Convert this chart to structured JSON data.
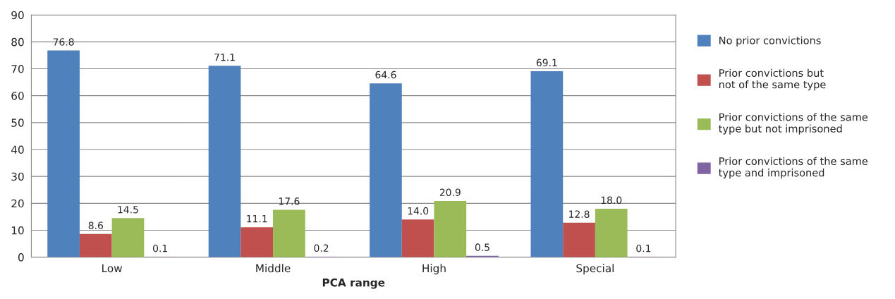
{
  "chart_data": {
    "type": "bar",
    "xlabel": "PCA range",
    "categories": [
      "Low",
      "Middle",
      "High",
      "Special"
    ],
    "series": [
      {
        "name": "No prior convictions",
        "color": "#4f81bd",
        "values": [
          76.8,
          71.1,
          64.6,
          69.1
        ],
        "value_labels": [
          "76.8",
          "71.1",
          "64.6",
          "69.1"
        ]
      },
      {
        "name": "Prior convictions but\nnot of the same type",
        "color": "#c0504d",
        "values": [
          8.6,
          11.1,
          14.0,
          12.8
        ],
        "value_labels": [
          "8.6",
          "11.1",
          "14.0",
          "12.8"
        ]
      },
      {
        "name": "Prior convictions of the same\ntype but not imprisoned",
        "color": "#9bbb59",
        "values": [
          14.5,
          17.6,
          20.9,
          18.0
        ],
        "value_labels": [
          "14.5",
          "17.6",
          "20.9",
          "18.0"
        ]
      },
      {
        "name": "Prior convictions of the same\ntype and imprisoned",
        "color": "#8064a2",
        "values": [
          0.1,
          0.2,
          0.5,
          0.1
        ],
        "value_labels": [
          "0.1",
          "0.2",
          "0.5",
          "0.1"
        ]
      }
    ],
    "ylim": [
      0,
      90
    ],
    "yticks": [
      0,
      10,
      20,
      30,
      40,
      50,
      60,
      70,
      80,
      90
    ],
    "grid": "y",
    "legend": "right"
  }
}
